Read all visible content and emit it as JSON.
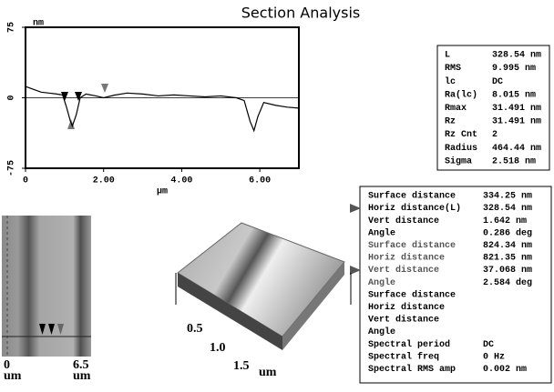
{
  "title": "Section Analysis",
  "profile": {
    "y_label": "nm",
    "x_label": "µm",
    "xlim": [
      0,
      7
    ],
    "ylim": [
      -75,
      75
    ],
    "yticks": [
      75,
      0,
      -75
    ],
    "xticks": [
      0,
      {
        "value": 2,
        "label": "2.00"
      },
      {
        "value": 4,
        "label": "4.00"
      },
      {
        "value": 6,
        "label": "6.00"
      }
    ],
    "x": [
      0,
      0.2,
      0.4,
      0.6,
      0.8,
      0.95,
      1.05,
      1.15,
      1.2,
      1.3,
      1.4,
      1.55,
      1.8,
      2.0,
      2.3,
      2.6,
      3.0,
      3.4,
      3.8,
      4.2,
      4.6,
      5.0,
      5.4,
      5.6,
      5.75,
      5.85,
      5.95,
      6.1,
      6.4,
      6.7,
      7.0
    ],
    "y": [
      12,
      9,
      6,
      5,
      4,
      3,
      -10,
      -25,
      -30,
      -18,
      0,
      4,
      2,
      0,
      3,
      5,
      4,
      2,
      3,
      2,
      1,
      2,
      0,
      -3,
      -25,
      -35,
      -20,
      -5,
      -8,
      -10,
      -11
    ]
  },
  "stats": [
    [
      "L",
      "328.54 nm"
    ],
    [
      "RMS",
      "9.995 nm"
    ],
    [
      "lc",
      "DC"
    ],
    [
      "Ra(lc)",
      "8.015 nm"
    ],
    [
      "Rmax",
      "31.491 nm"
    ],
    [
      "Rz",
      "31.491 nm"
    ],
    [
      "Rz Cnt",
      "2"
    ],
    [
      "Radius",
      "464.44 nm"
    ],
    [
      "Sigma",
      "2.518 nm"
    ]
  ],
  "measurements": [
    [
      "Surface distance",
      "334.25 nm"
    ],
    [
      "Horiz distance(L)",
      "328.54 nm"
    ],
    [
      "Vert distance",
      "1.642 nm"
    ],
    [
      "Angle",
      "0.286 deg"
    ],
    [
      "Surface distance",
      "824.34 nm"
    ],
    [
      "Horiz distance",
      "821.35 nm"
    ],
    [
      "Vert distance",
      "37.068 nm"
    ],
    [
      "Angle",
      "2.584 deg"
    ],
    [
      "Surface distance"
    ],
    [
      "Horiz distance"
    ],
    [
      "Vert distance"
    ],
    [
      "Angle"
    ],
    [
      "Spectral period",
      "DC"
    ],
    [
      "Spectral freq",
      "0 Hz"
    ],
    [
      "Spectral RMS amp",
      "0.002 nm"
    ]
  ],
  "image_labels": {
    "x_start": "0",
    "x_start_unit": "um",
    "x_end": "6.5",
    "x_end_unit": "um"
  },
  "surface_labels": {
    "t1": "0.5",
    "t2": "1.0",
    "t3": "1.5",
    "unit": "um"
  }
}
